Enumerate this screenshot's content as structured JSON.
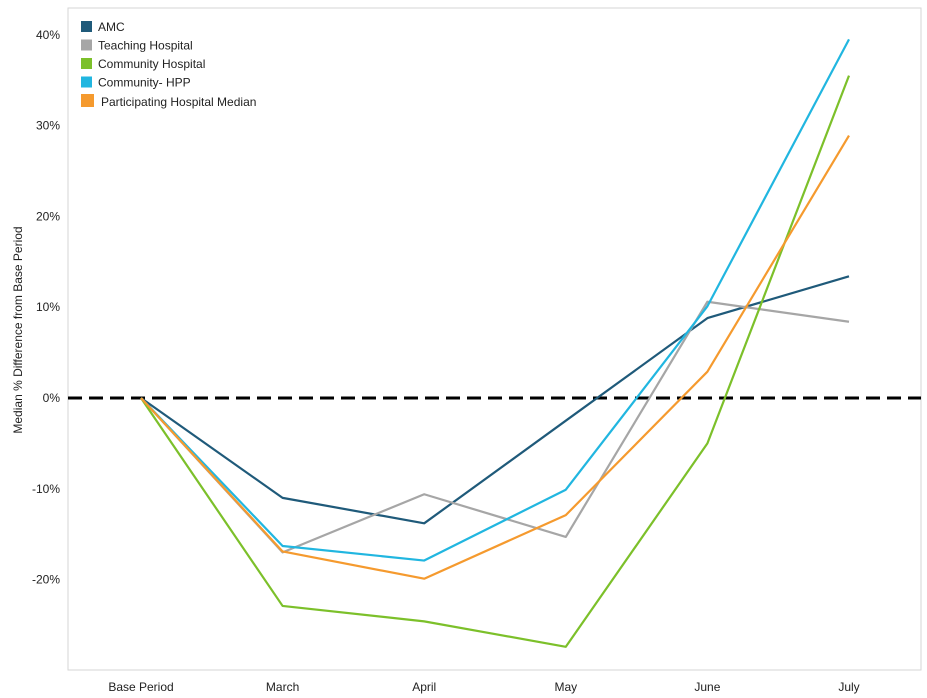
{
  "chart_data": {
    "type": "line",
    "title": "",
    "xlabel": "",
    "ylabel": "Median % Difference from Base Period",
    "categories": [
      "Base Period",
      "March",
      "April",
      "May",
      "June",
      "July"
    ],
    "ylim": [
      -30,
      43
    ],
    "yticks": [
      40,
      30,
      20,
      10,
      0,
      -10,
      -20
    ],
    "ytick_labels": [
      "40%",
      "30%",
      "20%",
      "10%",
      "0%",
      "-10%",
      "-20%"
    ],
    "reference_line": {
      "y": 0,
      "style": "dashed",
      "color": "#000000"
    },
    "grid": false,
    "legend_position": "top-left",
    "series": [
      {
        "name": "AMC",
        "color": "#1f5a7a",
        "values": [
          0,
          -11,
          -13.8,
          -2.5,
          8.8,
          13.4
        ]
      },
      {
        "name": "Teaching Hospital",
        "color": "#a6a6a6",
        "values": [
          0,
          -17,
          -10.6,
          -15.3,
          10.6,
          8.4
        ]
      },
      {
        "name": "Community Hospital",
        "color": "#7cc02a",
        "values": [
          0,
          -22.9,
          -24.6,
          -27.4,
          -5,
          35.5
        ]
      },
      {
        "name": "Community- HPP",
        "color": "#21b6e0",
        "values": [
          0,
          -16.3,
          -17.9,
          -10.1,
          10.1,
          39.5
        ]
      },
      {
        "name": "Participating Hospital Median",
        "color": "#f59a2e",
        "values": [
          0,
          -16.9,
          -19.9,
          -12.9,
          2.9,
          28.9
        ]
      }
    ]
  }
}
